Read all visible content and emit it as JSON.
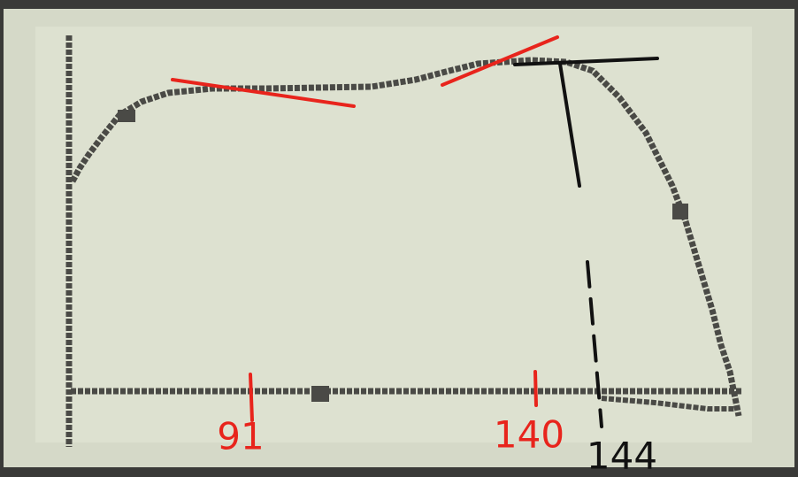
{
  "annotations": [
    {
      "label": "91"
    },
    {
      "label": "140"
    },
    {
      "label": "144"
    }
  ]
}
